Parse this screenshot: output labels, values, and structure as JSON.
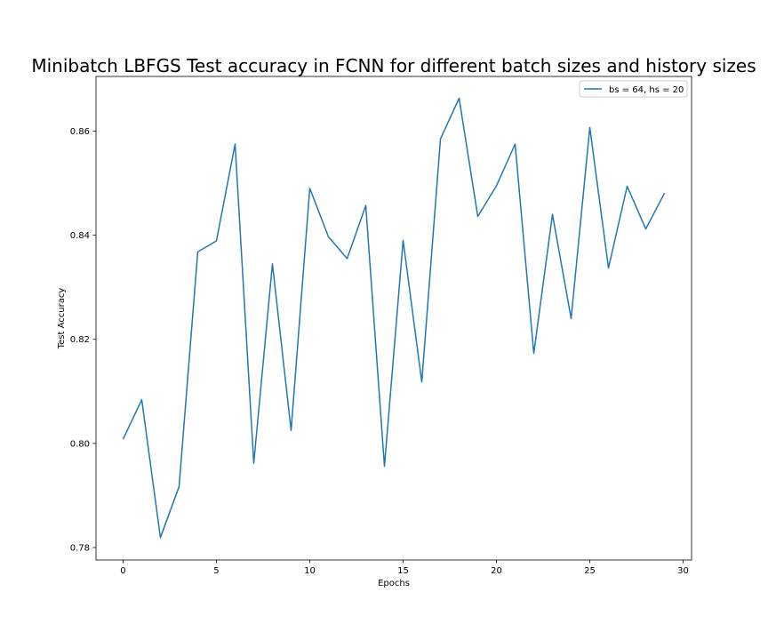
{
  "chart_data": {
    "type": "line",
    "title": "Minibatch LBFGS Test accuracy in FCNN for different batch sizes and history sizes",
    "xlabel": "Epochs",
    "ylabel": "Test Accuracy",
    "xlim": [
      -1.45,
      30.45
    ],
    "ylim": [
      0.7776,
      0.8705
    ],
    "x_ticks": [
      0,
      5,
      10,
      15,
      20,
      25,
      30
    ],
    "x_tick_labels": [
      "0",
      "5",
      "10",
      "15",
      "20",
      "25",
      "30"
    ],
    "y_ticks": [
      0.78,
      0.8,
      0.82,
      0.84,
      0.86
    ],
    "y_tick_labels": [
      "0.78",
      "0.80",
      "0.82",
      "0.84",
      "0.86"
    ],
    "grid": false,
    "legend_position": "top-right",
    "series": [
      {
        "name": "bs = 64, hs = 20",
        "color": "#1f77b4",
        "x": [
          0,
          1,
          2,
          3,
          4,
          5,
          6,
          7,
          8,
          9,
          10,
          11,
          12,
          13,
          14,
          15,
          16,
          17,
          18,
          19,
          20,
          21,
          22,
          23,
          24,
          25,
          26,
          27,
          28,
          29
        ],
        "values": [
          0.8008,
          0.8084,
          0.7819,
          0.7917,
          0.8368,
          0.8389,
          0.8575,
          0.7962,
          0.8345,
          0.8025,
          0.849,
          0.8397,
          0.8355,
          0.8457,
          0.7956,
          0.839,
          0.8118,
          0.8585,
          0.8663,
          0.8436,
          0.8495,
          0.8575,
          0.8173,
          0.844,
          0.824,
          0.8607,
          0.8337,
          0.8494,
          0.8412,
          0.8481
        ]
      }
    ]
  }
}
